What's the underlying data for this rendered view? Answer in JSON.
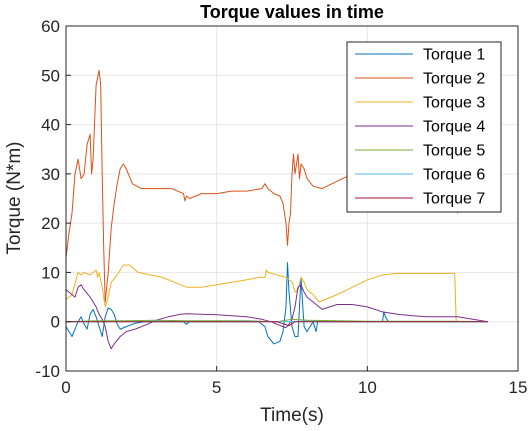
{
  "chart_data": {
    "type": "line",
    "title": "Torque values in time",
    "xlabel": "Time(s)",
    "ylabel": "Torque (N*m)",
    "xlim": [
      0,
      15
    ],
    "ylim": [
      -10,
      60
    ],
    "xticks": [
      "0",
      "5",
      "10",
      "15"
    ],
    "yticks": [
      "-10",
      "0",
      "10",
      "20",
      "30",
      "40",
      "50",
      "60"
    ],
    "grid": true,
    "legend_position": "top-right",
    "series": [
      {
        "name": "Torque 1",
        "color": "#0072BD",
        "points": [
          [
            0,
            -1
          ],
          [
            0.1,
            -2
          ],
          [
            0.2,
            -3
          ],
          [
            0.3,
            -1.5
          ],
          [
            0.4,
            0
          ],
          [
            0.5,
            1
          ],
          [
            0.6,
            -0.5
          ],
          [
            0.7,
            -1.5
          ],
          [
            0.8,
            1.5
          ],
          [
            0.9,
            2.5
          ],
          [
            1,
            1
          ],
          [
            1.1,
            -1
          ],
          [
            1.2,
            -3
          ],
          [
            1.3,
            1
          ],
          [
            1.4,
            2.8
          ],
          [
            1.5,
            2.5
          ],
          [
            1.6,
            1.5
          ],
          [
            1.7,
            -0.5
          ],
          [
            1.8,
            -1.5
          ],
          [
            2,
            -1
          ],
          [
            2.3,
            -0.3
          ],
          [
            2.6,
            0
          ],
          [
            3,
            0
          ],
          [
            3.5,
            0
          ],
          [
            3.9,
            0
          ],
          [
            4,
            -0.5
          ],
          [
            4.1,
            0
          ],
          [
            5,
            0
          ],
          [
            6.4,
            0
          ],
          [
            6.6,
            -1
          ],
          [
            6.7,
            -3
          ],
          [
            6.9,
            -4.5
          ],
          [
            7.1,
            -4
          ],
          [
            7.2,
            -2
          ],
          [
            7.3,
            3
          ],
          [
            7.35,
            12
          ],
          [
            7.4,
            6
          ],
          [
            7.5,
            -1
          ],
          [
            7.6,
            -3
          ],
          [
            7.7,
            -3
          ],
          [
            7.75,
            3
          ],
          [
            7.8,
            9
          ],
          [
            7.85,
            4
          ],
          [
            7.9,
            -1
          ],
          [
            8.0,
            -2
          ],
          [
            8.1,
            -1
          ],
          [
            8.2,
            0
          ],
          [
            8.3,
            -2
          ],
          [
            8.35,
            0
          ],
          [
            8.5,
            0
          ],
          [
            9,
            0
          ],
          [
            10,
            0
          ],
          [
            10.5,
            0
          ],
          [
            10.55,
            2
          ],
          [
            10.6,
            1
          ],
          [
            10.7,
            0
          ],
          [
            11,
            0
          ],
          [
            12,
            0
          ],
          [
            13,
            0
          ],
          [
            14,
            0
          ]
        ]
      },
      {
        "name": "Torque 2",
        "color": "#D95319",
        "points": [
          [
            0,
            13
          ],
          [
            0.1,
            18
          ],
          [
            0.2,
            22
          ],
          [
            0.3,
            30
          ],
          [
            0.4,
            33
          ],
          [
            0.5,
            29
          ],
          [
            0.6,
            30
          ],
          [
            0.7,
            36
          ],
          [
            0.8,
            38
          ],
          [
            0.85,
            30
          ],
          [
            0.9,
            33
          ],
          [
            1,
            48
          ],
          [
            1.1,
            51
          ],
          [
            1.15,
            48
          ],
          [
            1.2,
            30
          ],
          [
            1.25,
            15
          ],
          [
            1.3,
            4
          ],
          [
            1.4,
            10
          ],
          [
            1.5,
            19
          ],
          [
            1.6,
            24
          ],
          [
            1.7,
            28
          ],
          [
            1.8,
            31
          ],
          [
            1.9,
            32
          ],
          [
            2,
            31
          ],
          [
            2.2,
            28
          ],
          [
            2.5,
            27
          ],
          [
            3,
            27
          ],
          [
            3.5,
            27
          ],
          [
            3.9,
            26
          ],
          [
            3.95,
            24.5
          ],
          [
            4,
            25.5
          ],
          [
            4.1,
            25
          ],
          [
            4.5,
            26
          ],
          [
            5,
            26
          ],
          [
            5.5,
            26.5
          ],
          [
            6,
            26.5
          ],
          [
            6.5,
            27
          ],
          [
            6.6,
            28
          ],
          [
            6.7,
            27
          ],
          [
            6.9,
            26
          ],
          [
            7.1,
            25.5
          ],
          [
            7.2,
            24
          ],
          [
            7.3,
            20
          ],
          [
            7.35,
            15.5
          ],
          [
            7.4,
            20
          ],
          [
            7.45,
            22
          ],
          [
            7.5,
            30
          ],
          [
            7.55,
            34
          ],
          [
            7.6,
            30
          ],
          [
            7.7,
            34
          ],
          [
            7.75,
            29
          ],
          [
            7.8,
            32
          ],
          [
            7.9,
            31
          ],
          [
            8,
            29
          ],
          [
            8.2,
            27.5
          ],
          [
            8.5,
            27
          ],
          [
            9,
            28.5
          ],
          [
            9.5,
            30
          ],
          [
            10,
            31
          ],
          [
            10.5,
            30
          ],
          [
            11,
            30
          ],
          [
            11.5,
            30
          ],
          [
            12,
            30
          ],
          [
            12.5,
            30
          ],
          [
            12.8,
            30
          ],
          [
            12.9,
            26
          ],
          [
            13,
            22
          ]
        ]
      },
      {
        "name": "Torque 3",
        "color": "#EDB120",
        "points": [
          [
            0,
            4.5
          ],
          [
            0.2,
            5.5
          ],
          [
            0.4,
            10
          ],
          [
            0.5,
            9.5
          ],
          [
            0.6,
            10
          ],
          [
            0.8,
            9.5
          ],
          [
            1,
            10.5
          ],
          [
            1.05,
            9
          ],
          [
            1.1,
            10
          ],
          [
            1.2,
            7
          ],
          [
            1.3,
            3
          ],
          [
            1.4,
            5
          ],
          [
            1.5,
            8
          ],
          [
            1.7,
            9.5
          ],
          [
            1.9,
            11.5
          ],
          [
            2.1,
            11.5
          ],
          [
            2.4,
            10
          ],
          [
            2.8,
            9.5
          ],
          [
            3.2,
            9
          ],
          [
            3.6,
            8
          ],
          [
            4,
            7
          ],
          [
            4.5,
            7
          ],
          [
            5,
            7.5
          ],
          [
            5.5,
            8
          ],
          [
            6,
            8.5
          ],
          [
            6.4,
            9
          ],
          [
            6.6,
            9
          ],
          [
            6.65,
            10.5
          ],
          [
            6.7,
            10
          ],
          [
            7,
            9.5
          ],
          [
            7.3,
            9
          ],
          [
            7.5,
            8
          ],
          [
            7.6,
            6
          ],
          [
            7.7,
            6.5
          ],
          [
            7.8,
            9
          ],
          [
            7.9,
            8
          ],
          [
            8,
            6.5
          ],
          [
            8.2,
            5.5
          ],
          [
            8.4,
            4
          ],
          [
            8.6,
            4.5
          ],
          [
            9,
            5.5
          ],
          [
            9.5,
            7
          ],
          [
            10,
            8.5
          ],
          [
            10.5,
            9.5
          ],
          [
            11,
            9.8
          ],
          [
            12,
            9.8
          ],
          [
            12.9,
            9.8
          ],
          [
            12.95,
            0
          ],
          [
            13,
            0
          ]
        ]
      },
      {
        "name": "Torque 4",
        "color": "#7E2F8E",
        "points": [
          [
            0,
            6.5
          ],
          [
            0.1,
            6
          ],
          [
            0.3,
            5
          ],
          [
            0.4,
            7
          ],
          [
            0.5,
            7.5
          ],
          [
            0.6,
            6.5
          ],
          [
            0.8,
            5
          ],
          [
            0.9,
            4
          ],
          [
            1,
            3
          ],
          [
            1.1,
            1.5
          ],
          [
            1.2,
            0.5
          ],
          [
            1.3,
            -1
          ],
          [
            1.4,
            -4
          ],
          [
            1.5,
            -5.5
          ],
          [
            1.6,
            -4.5
          ],
          [
            1.8,
            -3
          ],
          [
            2,
            -2
          ],
          [
            2.3,
            -1.5
          ],
          [
            2.7,
            -0.5
          ],
          [
            3,
            0.3
          ],
          [
            3.4,
            1
          ],
          [
            3.8,
            1.5
          ],
          [
            4,
            1.6
          ],
          [
            4.5,
            1.5
          ],
          [
            5,
            1.4
          ],
          [
            5.5,
            1.2
          ],
          [
            6,
            1
          ],
          [
            6.5,
            0.5
          ],
          [
            6.8,
            0
          ],
          [
            7,
            -0.5
          ],
          [
            7.2,
            -1
          ],
          [
            7.3,
            -1.2
          ],
          [
            7.4,
            -0.5
          ],
          [
            7.5,
            0.5
          ],
          [
            7.6,
            3
          ],
          [
            7.7,
            7
          ],
          [
            7.8,
            7.5
          ],
          [
            7.9,
            6
          ],
          [
            8,
            5
          ],
          [
            8.2,
            4
          ],
          [
            8.5,
            2.5
          ],
          [
            9,
            3.5
          ],
          [
            9.5,
            3.5
          ],
          [
            10,
            3
          ],
          [
            10.5,
            2
          ],
          [
            11,
            1.5
          ],
          [
            11.5,
            1.2
          ],
          [
            12,
            1
          ],
          [
            12.5,
            1
          ],
          [
            13,
            1
          ],
          [
            13.5,
            0.5
          ],
          [
            14,
            0
          ]
        ]
      },
      {
        "name": "Torque 5",
        "color": "#77AC30",
        "points": [
          [
            0,
            0
          ],
          [
            1,
            0.2
          ],
          [
            2,
            0.2
          ],
          [
            3,
            0.3
          ],
          [
            4,
            0.2
          ],
          [
            5,
            0.2
          ],
          [
            6,
            0.2
          ],
          [
            7,
            0
          ],
          [
            7.5,
            0.5
          ],
          [
            8,
            0.3
          ],
          [
            9,
            0.2
          ],
          [
            10,
            0.1
          ],
          [
            11,
            0.1
          ],
          [
            12,
            0.1
          ],
          [
            13,
            0.1
          ],
          [
            14,
            0
          ]
        ]
      },
      {
        "name": "Torque 6",
        "color": "#4DBEEE",
        "points": [
          [
            0,
            0
          ],
          [
            1,
            0
          ],
          [
            2,
            0
          ],
          [
            3,
            0.1
          ],
          [
            4,
            0
          ],
          [
            5,
            0
          ],
          [
            6,
            0.1
          ],
          [
            7,
            0
          ],
          [
            8,
            0.1
          ],
          [
            9,
            0
          ],
          [
            10,
            0
          ],
          [
            11,
            0
          ],
          [
            12,
            0
          ],
          [
            13,
            0
          ],
          [
            14,
            0
          ]
        ]
      },
      {
        "name": "Torque 7",
        "color": "#A2142F",
        "points": [
          [
            0,
            0
          ],
          [
            1,
            0
          ],
          [
            2,
            0
          ],
          [
            3,
            0
          ],
          [
            4,
            0
          ],
          [
            5,
            0
          ],
          [
            6,
            0
          ],
          [
            7,
            0
          ],
          [
            7.4,
            -0.8
          ],
          [
            7.6,
            0
          ],
          [
            8,
            0
          ],
          [
            9,
            0
          ],
          [
            10,
            0
          ],
          [
            11,
            0
          ],
          [
            12,
            0
          ],
          [
            13,
            0
          ],
          [
            14,
            0
          ]
        ]
      }
    ]
  }
}
